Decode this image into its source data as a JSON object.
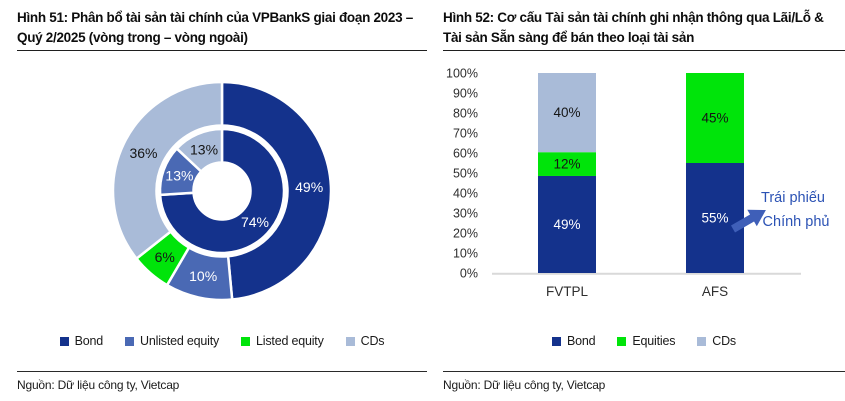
{
  "left": {
    "title": "Hình 51: Phân bổ tài sản tài chính của VPBankS giai đoạn 2023 – Quý 2/2025 (vòng trong – vòng ngoài)",
    "source": "Nguồn: Dữ liệu công ty, Vietcap"
  },
  "right": {
    "title": "Hình 52: Cơ cấu Tài sản tài chính ghi nhận thông qua Lãi/Lỗ & Tài sản Sẵn sàng để bán theo loại tài sản",
    "source": "Nguồn: Dữ liệu công ty, Vietcap"
  },
  "colors": {
    "series": {
      "Bond": "#14328c",
      "Unlisted equity": "#4a69b4",
      "Listed equity": "#00e40a",
      "Equities": "#00e40a",
      "CDs": "#a9bbd8"
    },
    "text_on_series": {
      "Bond": "#ffffff",
      "Unlisted equity": "#ffffff",
      "Listed equity": "#151515",
      "Equities": "#151515",
      "CDs": "#151515"
    },
    "annotation_text": "#2b52b4",
    "annotation_arrow": "#3f5fb8",
    "axis_line": "#d9d9d9",
    "tick_text": "#2e2e2e",
    "category_text": "#2e2e2e"
  },
  "chart_data": [
    {
      "type": "pie",
      "subtype": "nested-donut",
      "title": "Hình 51: Phân bổ tài sản tài chính của VPBankS giai đoạn 2023 – Quý 2/2025 (vòng trong – vòng ngoài)",
      "rings": [
        {
          "name": "vòng trong (2023)",
          "segments": [
            {
              "label": "Bond",
              "value": 74
            },
            {
              "label": "Unlisted equity",
              "value": 13
            },
            {
              "label": "CDs",
              "value": 13
            }
          ]
        },
        {
          "name": "vòng ngoài (Quý 2/2025)",
          "segments": [
            {
              "label": "Bond",
              "value": 49
            },
            {
              "label": "Unlisted equity",
              "value": 10
            },
            {
              "label": "Listed equity",
              "value": 6
            },
            {
              "label": "CDs",
              "value": 36
            }
          ]
        }
      ],
      "value_suffix": "%",
      "legend": [
        "Bond",
        "Unlisted equity",
        "Listed equity",
        "CDs"
      ],
      "legend_position": "bottom"
    },
    {
      "type": "bar",
      "subtype": "stacked-100",
      "title": "Hình 52: Cơ cấu Tài sản tài chính ghi nhận thông qua Lãi/Lỗ & Tài sản Sẵn sàng để bán theo loại tài sản",
      "categories": [
        "FVTPL",
        "AFS"
      ],
      "series": [
        {
          "name": "Bond",
          "values": [
            49,
            55
          ]
        },
        {
          "name": "Equities",
          "values": [
            12,
            45
          ]
        },
        {
          "name": "CDs",
          "values": [
            40,
            0
          ]
        }
      ],
      "ylim": [
        0,
        100
      ],
      "yticks": [
        0,
        10,
        20,
        30,
        40,
        50,
        60,
        70,
        80,
        90,
        100
      ],
      "ytick_suffix": "%",
      "grid": false,
      "value_suffix": "%",
      "legend": [
        "Bond",
        "Equities",
        "CDs"
      ],
      "legend_position": "bottom",
      "annotation": {
        "line1": "Trái phiếu",
        "line2": "Chính phủ",
        "target": "AFS Bond segment"
      }
    }
  ]
}
